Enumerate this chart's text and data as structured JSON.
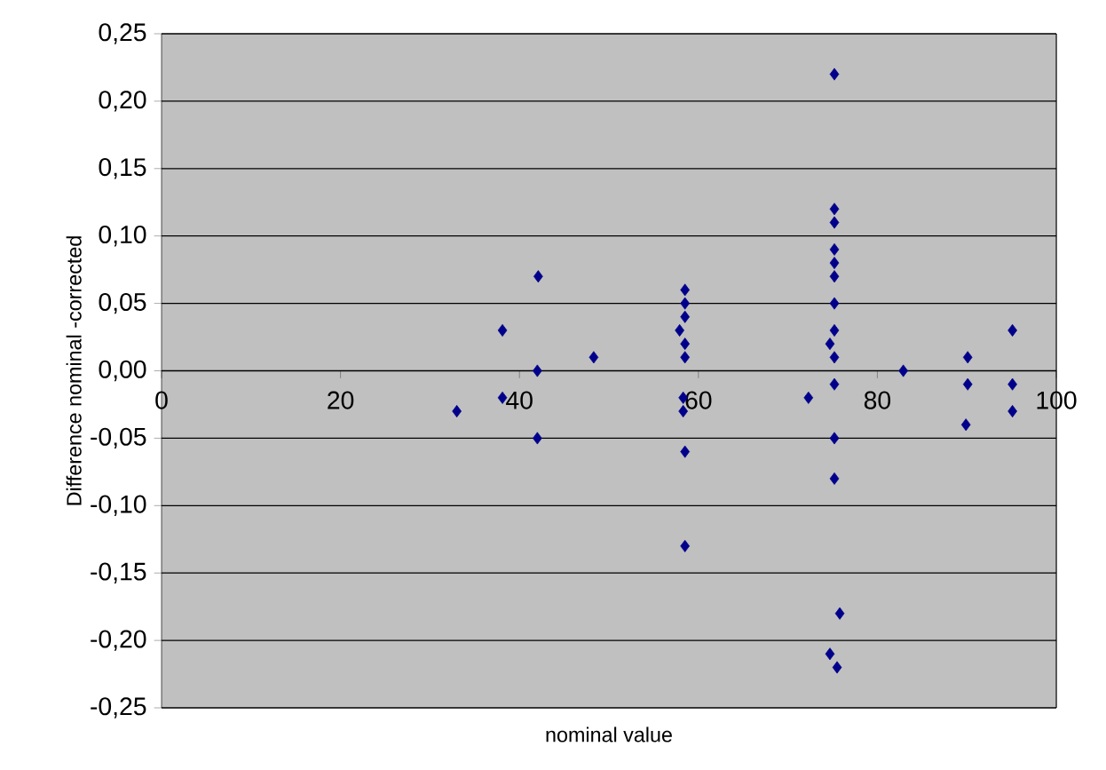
{
  "chart_data": {
    "type": "scatter",
    "xlabel": "nominal value",
    "ylabel": "Difference nominal -corrected",
    "x": [
      33.0,
      38.1,
      38.1,
      42.1,
      42.0,
      42.0,
      48.3,
      58.5,
      58.5,
      58.5,
      57.9,
      58.5,
      58.5,
      58.3,
      58.3,
      58.5,
      58.5,
      75.2,
      75.2,
      75.2,
      75.2,
      75.2,
      75.2,
      75.2,
      75.2,
      74.7,
      75.2,
      75.2,
      75.2,
      75.2,
      75.8,
      74.7,
      75.5,
      72.3,
      82.9,
      90.1,
      90.1,
      89.9,
      95.1,
      95.1,
      95.1
    ],
    "series": [
      {
        "color": "#00008b",
        "values": [
          -0.03,
          0.03,
          -0.02,
          0.07,
          0.0,
          -0.05,
          0.01,
          0.06,
          0.05,
          0.04,
          0.03,
          0.02,
          0.01,
          -0.02,
          -0.03,
          -0.06,
          -0.13,
          0.22,
          0.12,
          0.11,
          0.09,
          0.08,
          0.07,
          0.05,
          0.03,
          0.02,
          0.01,
          -0.01,
          -0.05,
          -0.08,
          -0.18,
          -0.21,
          -0.22,
          -0.02,
          0.0,
          0.01,
          -0.01,
          -0.04,
          0.03,
          -0.01,
          -0.03
        ]
      }
    ],
    "xlim": [
      0,
      100
    ],
    "xticks": [
      0,
      20,
      40,
      60,
      80,
      100
    ],
    "ylim": [
      -0.25,
      0.25
    ],
    "yticks": [
      {
        "value": -0.25,
        "label": "-0,25"
      },
      {
        "value": -0.2,
        "label": "-0,20"
      },
      {
        "value": -0.15,
        "label": "-0,15"
      },
      {
        "value": -0.1,
        "label": "-0,10"
      },
      {
        "value": -0.05,
        "label": "-0,05"
      },
      {
        "value": 0.0,
        "label": "0,00"
      },
      {
        "value": 0.05,
        "label": "0,05"
      },
      {
        "value": 0.1,
        "label": "0,10"
      },
      {
        "value": 0.15,
        "label": "0,15"
      },
      {
        "value": 0.2,
        "label": "0,20"
      },
      {
        "value": 0.25,
        "label": "0,25"
      }
    ],
    "grid": "y",
    "marker": "diamond"
  }
}
